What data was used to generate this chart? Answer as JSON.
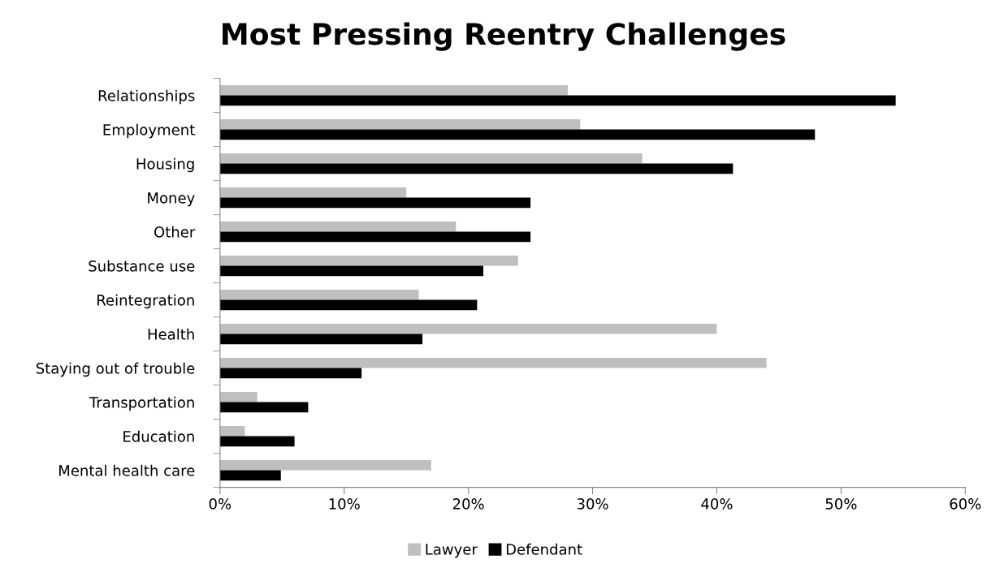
{
  "chart_data": {
    "type": "bar",
    "orientation": "horizontal",
    "title": "Most Pressing Reentry Challenges",
    "categories": [
      "Relationships",
      "Employment",
      "Housing",
      "Money",
      "Other",
      "Substance use",
      "Reintegration",
      "Health",
      "Staying out of trouble",
      "Transportation",
      "Education",
      "Mental health care"
    ],
    "series": [
      {
        "name": "Lawyer",
        "color": "#bfbfbf",
        "values": [
          28,
          29,
          34,
          15,
          19,
          24,
          16,
          40,
          44,
          3,
          2,
          17
        ]
      },
      {
        "name": "Defendant",
        "color": "#000000",
        "values": [
          54.4,
          47.9,
          41.3,
          25,
          25,
          21.2,
          20.7,
          16.3,
          11.4,
          7.1,
          6,
          4.9
        ]
      }
    ],
    "xlim": [
      0,
      60
    ],
    "xticks": [
      {
        "value": 0,
        "label": "0%"
      },
      {
        "value": 10,
        "label": "10%"
      },
      {
        "value": 20,
        "label": "20%"
      },
      {
        "value": 30,
        "label": "30%"
      },
      {
        "value": 40,
        "label": "40%"
      },
      {
        "value": 50,
        "label": "50%"
      },
      {
        "value": 60,
        "label": "60%"
      }
    ],
    "grid": false,
    "legend": "bottom"
  }
}
